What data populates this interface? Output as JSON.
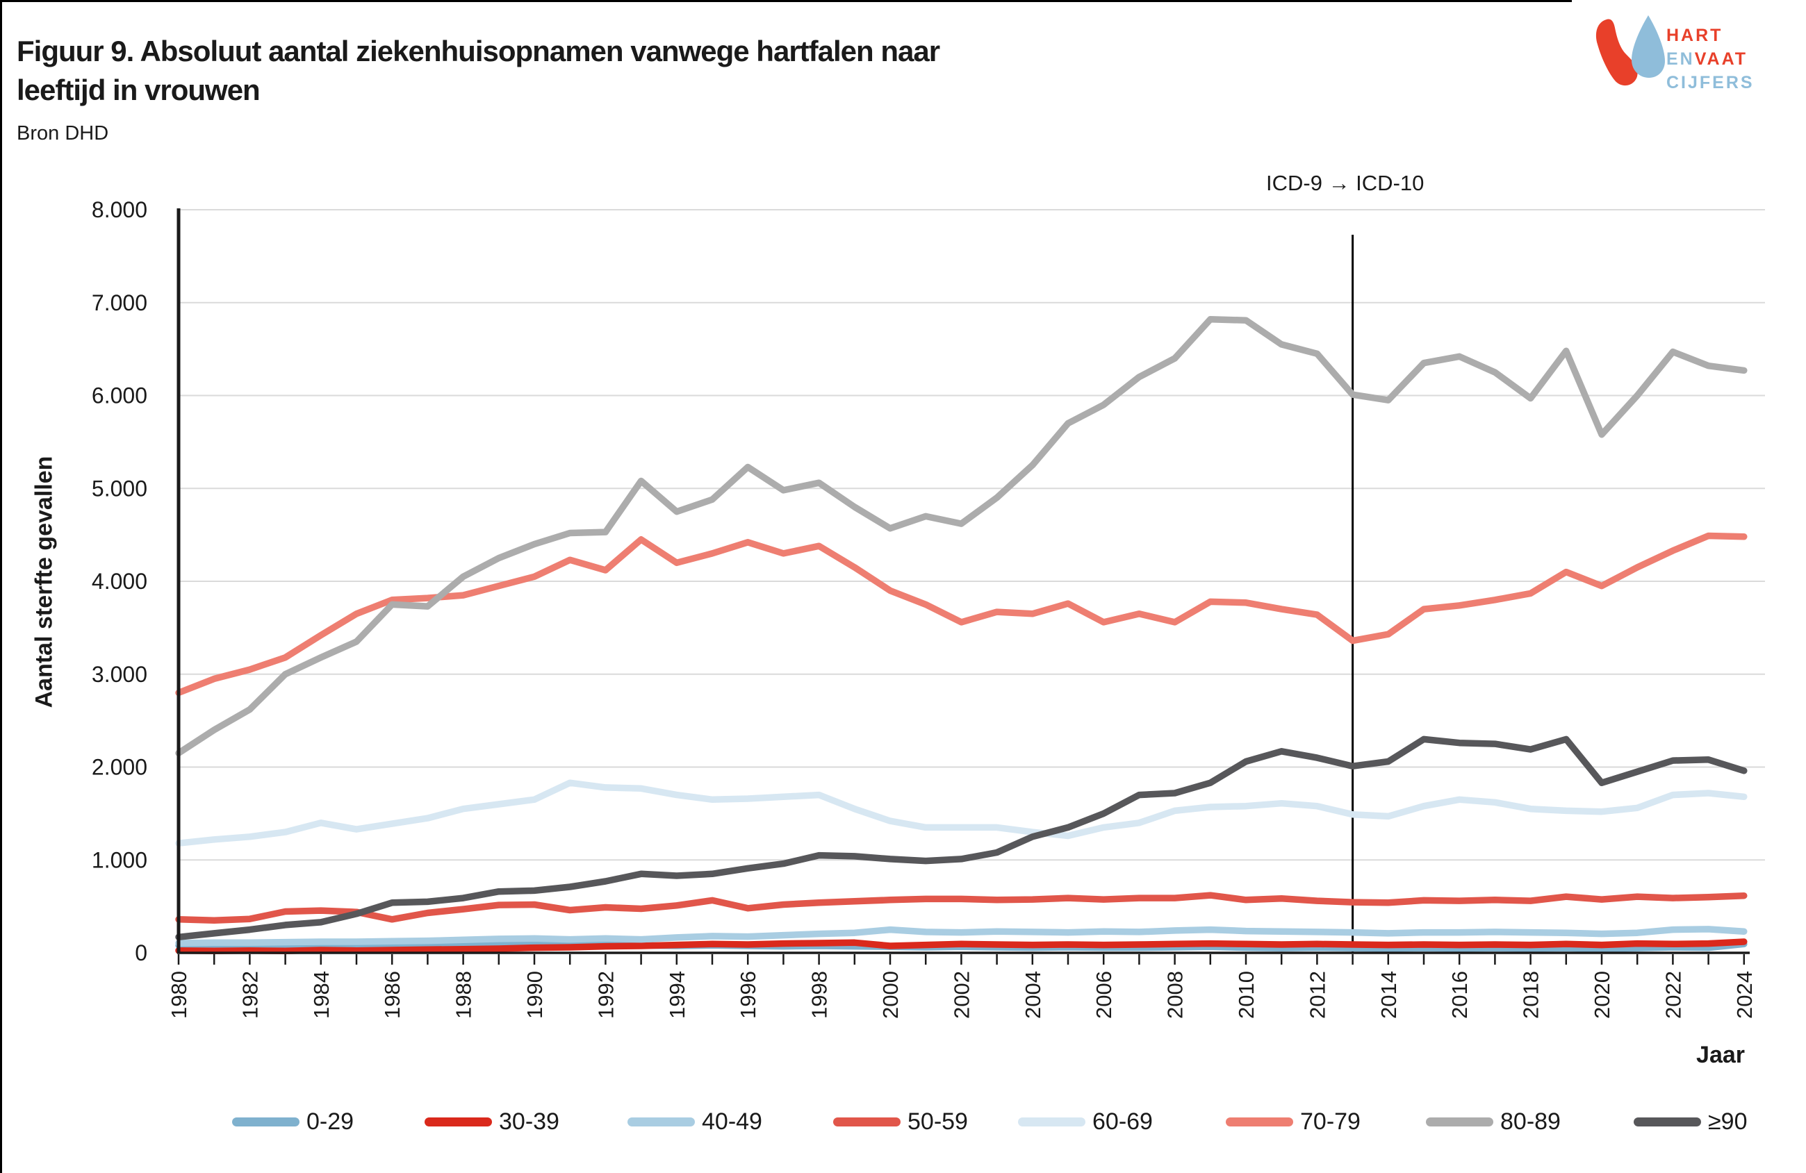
{
  "page": {
    "title_line1": "Figuur 9. Absoluut aantal ziekenhuisopnamen vanwege hartfalen naar",
    "title_line2": "leeftijd in vrouwen",
    "source": "Bron DHD"
  },
  "logo": {
    "word1": "HART",
    "word2a": "EN",
    "word2b": "VAAT",
    "word3": "CIJFERS",
    "red": "#E8402A",
    "blue": "#8FBDDA"
  },
  "annotation": {
    "icd_label": "ICD-9 → ICD-10",
    "icd_year": 2013
  },
  "chart_data": {
    "type": "line",
    "title": "Figuur 9. Absoluut aantal ziekenhuisopnamen vanwege hartfalen naar leeftijd in vrouwen",
    "subtitle": "Bron DHD",
    "xlabel": "Jaar",
    "ylabel": "Aantal sterfte gevallen",
    "ylim": [
      0,
      8000
    ],
    "grid": "horizontal",
    "legend_position": "bottom",
    "ytick_labels": [
      "0",
      "1.000",
      "2.000",
      "3.000",
      "4.000",
      "5.000",
      "6.000",
      "7.000",
      "8.000"
    ],
    "xtick_label_years": [
      1980,
      1982,
      1984,
      1986,
      1988,
      1990,
      1992,
      1994,
      1996,
      1998,
      2000,
      2002,
      2004,
      2006,
      2008,
      2010,
      2012,
      2014,
      2016,
      2018,
      2020,
      2022,
      2024
    ],
    "x": [
      1980,
      1981,
      1982,
      1983,
      1984,
      1985,
      1986,
      1987,
      1988,
      1989,
      1990,
      1991,
      1992,
      1993,
      1994,
      1995,
      1996,
      1997,
      1998,
      1999,
      2000,
      2001,
      2002,
      2003,
      2004,
      2005,
      2006,
      2007,
      2008,
      2009,
      2010,
      2011,
      2012,
      2013,
      2014,
      2015,
      2016,
      2017,
      2018,
      2019,
      2020,
      2021,
      2022,
      2023,
      2024
    ],
    "series": [
      {
        "name": "0-29",
        "color": "#7FB1CE",
        "values": [
          80,
          85,
          85,
          80,
          85,
          90,
          90,
          85,
          90,
          95,
          90,
          90,
          85,
          80,
          75,
          80,
          75,
          70,
          75,
          70,
          65,
          60,
          65,
          60,
          55,
          60,
          55,
          55,
          60,
          65,
          55,
          50,
          55,
          50,
          45,
          50,
          45,
          50,
          45,
          50,
          40,
          50,
          60,
          55,
          95
        ]
      },
      {
        "name": "30-39",
        "color": "#DA291C",
        "values": [
          25,
          20,
          25,
          20,
          30,
          25,
          30,
          35,
          40,
          45,
          55,
          60,
          70,
          75,
          85,
          95,
          90,
          100,
          105,
          110,
          75,
          85,
          95,
          90,
          85,
          90,
          85,
          90,
          95,
          100,
          95,
          90,
          95,
          90,
          85,
          90,
          85,
          90,
          85,
          95,
          85,
          100,
          95,
          100,
          120
        ]
      },
      {
        "name": "40-49",
        "color": "#A9CDE2",
        "values": [
          105,
          110,
          110,
          115,
          120,
          120,
          125,
          130,
          140,
          150,
          155,
          145,
          155,
          145,
          165,
          180,
          175,
          190,
          205,
          215,
          250,
          225,
          220,
          230,
          225,
          220,
          230,
          225,
          240,
          250,
          235,
          230,
          225,
          220,
          210,
          220,
          220,
          225,
          220,
          215,
          205,
          215,
          250,
          255,
          230
        ]
      },
      {
        "name": "50-59",
        "color": "#E1564A",
        "values": [
          360,
          350,
          365,
          445,
          455,
          440,
          360,
          430,
          470,
          515,
          520,
          460,
          490,
          475,
          510,
          565,
          480,
          520,
          540,
          555,
          570,
          580,
          580,
          570,
          575,
          590,
          575,
          590,
          590,
          620,
          570,
          585,
          560,
          545,
          540,
          565,
          560,
          570,
          560,
          605,
          575,
          605,
          590,
          600,
          615
        ]
      },
      {
        "name": "60-69",
        "color": "#D7E7F2",
        "values": [
          1180,
          1220,
          1250,
          1300,
          1400,
          1330,
          1390,
          1450,
          1550,
          1600,
          1650,
          1830,
          1780,
          1770,
          1700,
          1650,
          1660,
          1680,
          1700,
          1550,
          1420,
          1350,
          1350,
          1350,
          1300,
          1260,
          1350,
          1400,
          1530,
          1570,
          1580,
          1610,
          1580,
          1490,
          1470,
          1580,
          1650,
          1620,
          1550,
          1530,
          1520,
          1560,
          1700,
          1720,
          1680
        ]
      },
      {
        "name": "70-79",
        "color": "#EE7E71",
        "values": [
          2800,
          2950,
          3050,
          3180,
          3420,
          3650,
          3800,
          3820,
          3850,
          3950,
          4050,
          4230,
          4120,
          4450,
          4200,
          4300,
          4420,
          4300,
          4380,
          4150,
          3900,
          3750,
          3560,
          3670,
          3650,
          3760,
          3560,
          3650,
          3560,
          3780,
          3770,
          3700,
          3640,
          3360,
          3430,
          3700,
          3740,
          3800,
          3870,
          4100,
          3950,
          4150,
          4330,
          4490,
          4480
        ]
      },
      {
        "name": "80-89",
        "color": "#ACACAC",
        "values": [
          2150,
          2400,
          2620,
          3000,
          3180,
          3350,
          3750,
          3730,
          4050,
          4250,
          4400,
          4520,
          4530,
          5080,
          4750,
          4880,
          5230,
          4980,
          5060,
          4800,
          4570,
          4700,
          4620,
          4900,
          5250,
          5700,
          5900,
          6200,
          6400,
          6820,
          6810,
          6550,
          6450,
          6010,
          5950,
          6350,
          6420,
          6250,
          5970,
          6480,
          5580,
          6000,
          6470,
          6320,
          6270
        ]
      },
      {
        "name": "≥90",
        "color": "#57575A",
        "values": [
          170,
          210,
          250,
          300,
          330,
          420,
          540,
          550,
          590,
          660,
          670,
          710,
          770,
          850,
          830,
          850,
          910,
          960,
          1050,
          1040,
          1010,
          990,
          1010,
          1080,
          1250,
          1350,
          1500,
          1700,
          1720,
          1830,
          2060,
          2170,
          2100,
          2010,
          2060,
          2300,
          2260,
          2250,
          2190,
          2300,
          1830,
          1950,
          2070,
          2080,
          1960
        ]
      }
    ],
    "colors": {
      "axis": "#1A1A1A",
      "grid": "#DADADA",
      "icd_line": "#000000"
    }
  }
}
